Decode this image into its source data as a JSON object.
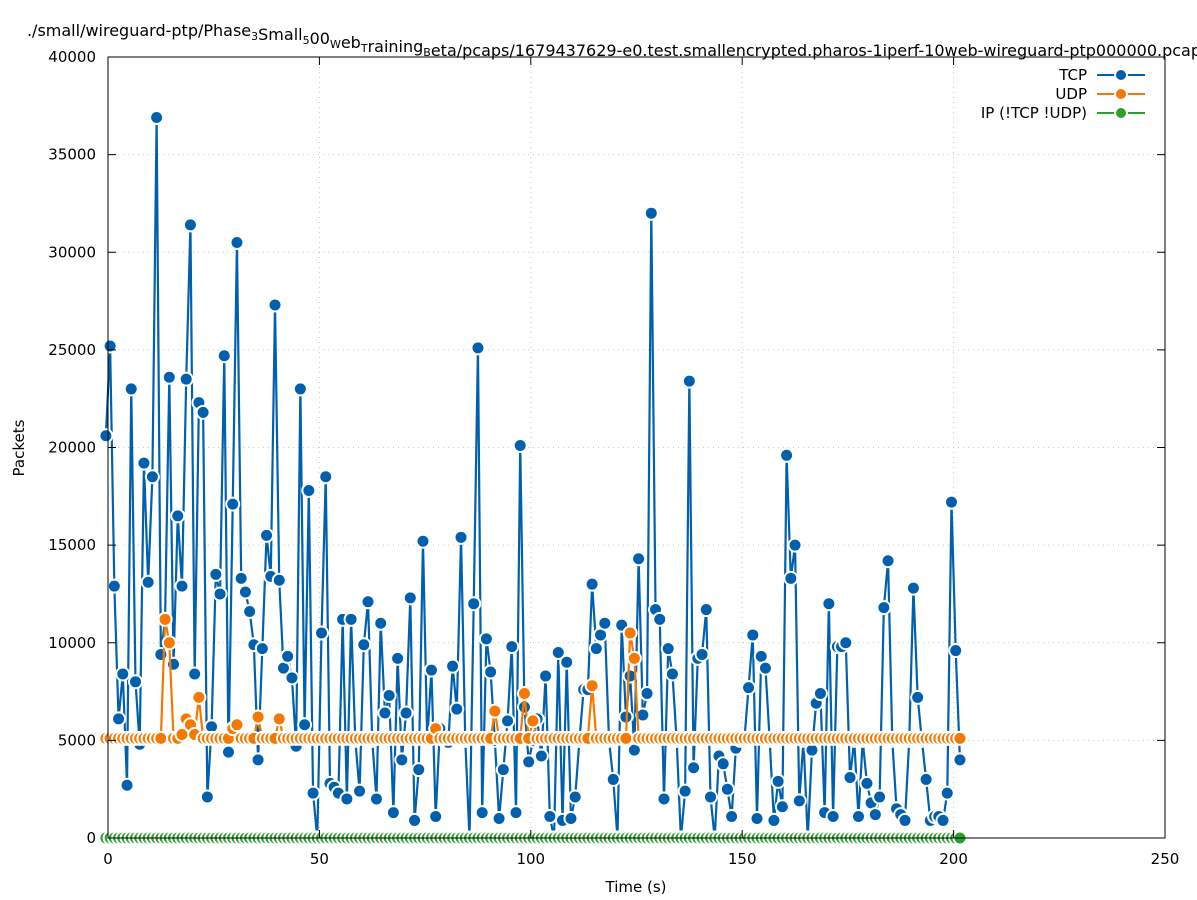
{
  "chart_data": {
    "type": "line",
    "title": "./small/wireguard-ptp/Phase_3Small_500_Web_Training_Beta/pcaps/1679437629-e0.test.smallencrypted.pharos-1iperf-10web-wireguard-ptp000000.pcap",
    "xlabel": "Time (s)",
    "ylabel": "Packets",
    "xlim": [
      0,
      250
    ],
    "ylim": [
      0,
      40000
    ],
    "xticks": [
      0,
      50,
      100,
      150,
      200,
      250
    ],
    "yticks": [
      0,
      5000,
      10000,
      15000,
      20000,
      25000,
      30000,
      35000,
      40000
    ],
    "grid": true,
    "legend_position": "top-right",
    "x_start": -0.5,
    "x_step": 1,
    "series": [
      {
        "name": "TCP",
        "color": "#0060ad",
        "values": [
          20600,
          25200,
          12900,
          6100,
          8400,
          2700,
          23000,
          8000,
          4800,
          19200,
          13100,
          18500,
          36900,
          9400,
          11200,
          23600,
          8900,
          16500,
          12900,
          23500,
          31400,
          8400,
          22300,
          21800,
          2100,
          5700,
          13500,
          12500,
          24700,
          4400,
          17100,
          30500,
          13300,
          12600,
          11600,
          9900,
          4000,
          9700,
          15500,
          13400,
          27300,
          13200,
          8700,
          9300,
          8200,
          4700,
          23000,
          5800,
          17800,
          2300,
          0,
          10500,
          18500,
          2800,
          2600,
          2300,
          11200,
          2000,
          11200,
          5000,
          2400,
          9900,
          12100,
          5000,
          2000,
          11000,
          6400,
          7300,
          1300,
          9200,
          4000,
          6400,
          12300,
          900,
          3500,
          15200,
          5000,
          8600,
          1100,
          5600,
          5000,
          4900,
          8800,
          6600,
          15400,
          5000,
          0,
          12000,
          25100,
          1300,
          10200,
          8500,
          5000,
          1000,
          3500,
          6000,
          9800,
          1300,
          20100,
          6700,
          3900,
          5000,
          6100,
          4200,
          8300,
          1100,
          0,
          9500,
          900,
          9000,
          1000,
          2100,
          5000,
          7600,
          7600,
          13000,
          9700,
          10400,
          11000,
          5000,
          3000,
          0,
          10900,
          6200,
          8300,
          4500,
          14300,
          6300,
          7400,
          32000,
          11700,
          11200,
          2000,
          9700,
          8400,
          5000,
          0,
          2400,
          23400,
          3600,
          9200,
          9400,
          11700,
          2100,
          0,
          4200,
          3800,
          2500,
          1100,
          4600,
          5000,
          5000,
          7700,
          10400,
          1000,
          9300,
          8700,
          5000,
          900,
          2900,
          1600,
          19600,
          13300,
          15000,
          1900,
          5000,
          0,
          4500,
          6900,
          7400,
          1300,
          12000,
          1100,
          9800,
          9800,
          10000,
          3100,
          5000,
          1100,
          5000,
          2800,
          1800,
          1200,
          2100,
          11800,
          14200,
          5000,
          1500,
          1200,
          900,
          5000,
          12800,
          7200,
          5000,
          3000,
          900,
          1100,
          1100,
          900,
          2300,
          17200,
          9600,
          4000
        ]
      },
      {
        "name": "UDP",
        "color": "#f57900",
        "values": [
          5100,
          5100,
          5100,
          5100,
          5100,
          5100,
          5100,
          5100,
          5100,
          5100,
          5100,
          5100,
          5100,
          5100,
          11200,
          10000,
          5100,
          5100,
          5300,
          6100,
          5800,
          5300,
          7200,
          5100,
          5100,
          5100,
          5100,
          5100,
          5100,
          5100,
          5600,
          5800,
          5100,
          5100,
          5100,
          5100,
          6200,
          5100,
          5100,
          5100,
          5100,
          6100,
          5100,
          5100,
          5100,
          5100,
          5100,
          5100,
          5100,
          5100,
          5100,
          5100,
          5100,
          5100,
          5100,
          5100,
          5100,
          5100,
          5100,
          5100,
          5100,
          5100,
          5100,
          5100,
          5100,
          5100,
          5100,
          5100,
          5100,
          5100,
          5100,
          5100,
          5100,
          5100,
          5100,
          5100,
          5100,
          5100,
          5600,
          5100,
          5100,
          5100,
          5100,
          5100,
          5100,
          5100,
          5100,
          5100,
          5100,
          5100,
          5100,
          5100,
          6500,
          5100,
          5100,
          5100,
          5100,
          5100,
          5100,
          7400,
          5100,
          6000,
          5100,
          5100,
          5100,
          5100,
          5100,
          5100,
          5100,
          5100,
          5100,
          5100,
          5100,
          5100,
          5100,
          7800,
          5100,
          5100,
          5100,
          5100,
          5100,
          5100,
          5100,
          5100,
          10500,
          9200,
          5100,
          5100,
          5100,
          5100,
          5100,
          5100,
          5100,
          5100,
          5100,
          5100,
          5100,
          5100,
          5100,
          5100,
          5100,
          5100,
          5100,
          5100,
          5100,
          5100,
          5100,
          5100,
          5100,
          5100,
          5100,
          5100,
          5100,
          5100,
          5100,
          5100,
          5100,
          5100,
          5100,
          5100,
          5100,
          5100,
          5100,
          5100,
          5100,
          5100,
          5100,
          5100,
          5100,
          5100,
          5100,
          5100,
          5100,
          5100,
          5100,
          5100,
          5100,
          5100,
          5100,
          5100,
          5100,
          5100,
          5100,
          5100,
          5100,
          5100,
          5100,
          5100,
          5100,
          5100,
          5100,
          5100,
          5100,
          5100,
          5100,
          5100,
          5100,
          5100,
          5100,
          5100,
          5100,
          5100,
          5100
        ]
      },
      {
        "name": "IP (!TCP  !UDP)",
        "color": "#2ca02c",
        "values": [
          0,
          0,
          0,
          0,
          0,
          0,
          0,
          0,
          0,
          0,
          0,
          0,
          0,
          0,
          0,
          0,
          0,
          0,
          0,
          0,
          0,
          0,
          0,
          0,
          0,
          0,
          0,
          0,
          0,
          0,
          0,
          0,
          0,
          0,
          0,
          0,
          0,
          0,
          0,
          0,
          0,
          0,
          0,
          0,
          0,
          0,
          0,
          0,
          0,
          0,
          0,
          0,
          0,
          0,
          0,
          0,
          0,
          0,
          0,
          0,
          0,
          0,
          0,
          0,
          0,
          0,
          0,
          0,
          0,
          0,
          0,
          0,
          0,
          0,
          0,
          0,
          0,
          0,
          0,
          0,
          0,
          0,
          0,
          0,
          0,
          0,
          0,
          0,
          0,
          0,
          0,
          0,
          0,
          0,
          0,
          0,
          0,
          0,
          0,
          0,
          0,
          0,
          0,
          0,
          0,
          0,
          0,
          0,
          0,
          0,
          0,
          0,
          0,
          0,
          0,
          0,
          0,
          0,
          0,
          0,
          0,
          0,
          0,
          0,
          0,
          0,
          0,
          0,
          0,
          0,
          0,
          0,
          0,
          0,
          0,
          0,
          0,
          0,
          0,
          0,
          0,
          0,
          0,
          0,
          0,
          0,
          0,
          0,
          0,
          0,
          0,
          0,
          0,
          0,
          0,
          0,
          0,
          0,
          0,
          0,
          0,
          0,
          0,
          0,
          0,
          0,
          0,
          0,
          0,
          0,
          0,
          0,
          0,
          0,
          0,
          0,
          0,
          0,
          0,
          0,
          0,
          0,
          0,
          0,
          0,
          0,
          0,
          0,
          0,
          0,
          0,
          0,
          0,
          0,
          0,
          0,
          0,
          0,
          0,
          0,
          0,
          0,
          0
        ]
      }
    ]
  }
}
